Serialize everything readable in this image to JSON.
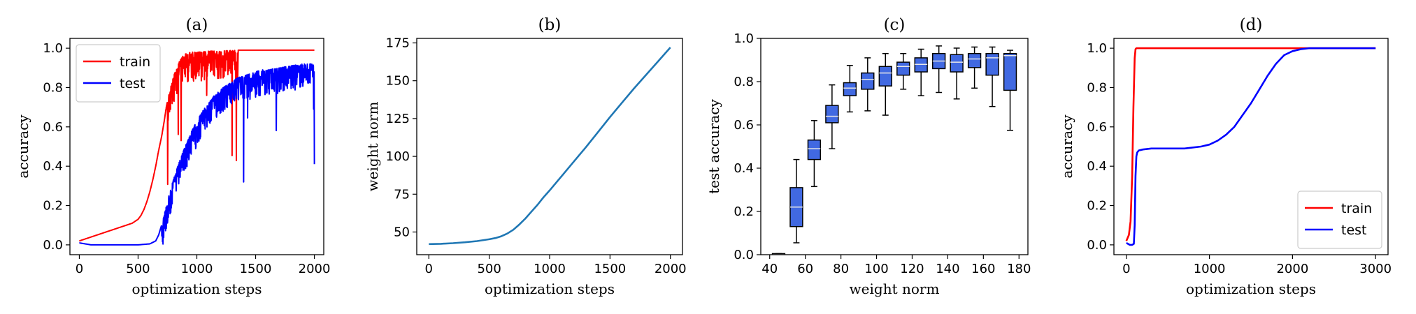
{
  "chart_data": [
    {
      "type": "line",
      "title": "(a)",
      "xlabel": "optimization steps",
      "ylabel": "accuracy",
      "xlim": [
        -80,
        2080
      ],
      "ylim": [
        -0.05,
        1.05
      ],
      "xticks": [
        0,
        500,
        1000,
        1500,
        2000
      ],
      "yticks": [
        0.0,
        0.2,
        0.4,
        0.6,
        0.8,
        1.0
      ],
      "legend": "top-left",
      "grid": false,
      "series": [
        {
          "name": "train",
          "color": "#ff0000",
          "x": [
            0,
            50,
            100,
            150,
            200,
            250,
            300,
            350,
            400,
            450,
            500,
            525,
            550,
            575,
            600,
            625,
            650,
            675,
            700,
            720,
            740,
            760,
            780,
            800,
            820,
            840,
            860,
            880,
            900,
            950,
            1000,
            1100,
            1200,
            1300,
            1400,
            1500,
            1600,
            1700,
            1800,
            1900,
            2000
          ],
          "y": [
            0.02,
            0.03,
            0.04,
            0.05,
            0.06,
            0.07,
            0.08,
            0.09,
            0.1,
            0.11,
            0.13,
            0.15,
            0.18,
            0.22,
            0.27,
            0.33,
            0.4,
            0.48,
            0.55,
            0.62,
            0.7,
            0.76,
            0.81,
            0.85,
            0.89,
            0.92,
            0.94,
            0.96,
            0.97,
            0.98,
            0.98,
            0.985,
            0.985,
            0.99,
            0.99,
            0.99,
            0.99,
            0.99,
            0.99,
            0.99,
            0.99
          ],
          "noise": {
            "start": 750,
            "end": 1350,
            "amplitude": 0.15
          }
        },
        {
          "name": "test",
          "color": "#0000ff",
          "x": [
            0,
            50,
            100,
            200,
            300,
            400,
            500,
            600,
            650,
            675,
            700,
            725,
            750,
            775,
            800,
            850,
            900,
            950,
            1000,
            1050,
            1100,
            1150,
            1200,
            1250,
            1300,
            1350,
            1400,
            1450,
            1500,
            1550,
            1600,
            1700,
            1800,
            1900,
            2000
          ],
          "y": [
            0.01,
            0.005,
            0.0,
            0.0,
            0.0,
            0.0,
            0.0,
            0.005,
            0.02,
            0.05,
            0.1,
            0.16,
            0.22,
            0.28,
            0.33,
            0.42,
            0.5,
            0.57,
            0.63,
            0.68,
            0.72,
            0.76,
            0.79,
            0.81,
            0.83,
            0.85,
            0.86,
            0.87,
            0.88,
            0.89,
            0.89,
            0.9,
            0.91,
            0.92,
            0.92
          ],
          "noise": {
            "start": 700,
            "end": 2000,
            "amplitude": 0.13
          }
        }
      ]
    },
    {
      "type": "line",
      "title": "(b)",
      "xlabel": "optimization steps",
      "ylabel": "weight norm",
      "xlim": [
        -100,
        2100
      ],
      "ylim": [
        35,
        178
      ],
      "xticks": [
        0,
        500,
        1000,
        1500,
        2000
      ],
      "yticks": [
        50,
        75,
        100,
        125,
        150,
        175
      ],
      "grid": false,
      "series": [
        {
          "name": "",
          "color": "#1f77b4",
          "x": [
            0,
            100,
            200,
            300,
            400,
            500,
            550,
            600,
            650,
            700,
            750,
            800,
            850,
            900,
            950,
            1000,
            1100,
            1200,
            1300,
            1400,
            1500,
            1600,
            1700,
            1800,
            1900,
            2000
          ],
          "y": [
            42,
            42.2,
            42.6,
            43.2,
            44,
            45.2,
            46,
            47.2,
            49,
            51.5,
            55,
            59,
            63.5,
            68,
            73,
            77.5,
            87,
            96.5,
            106,
            116,
            126,
            135.5,
            145,
            154,
            163,
            172
          ]
        }
      ]
    },
    {
      "type": "box",
      "title": "(c)",
      "xlabel": "weight norm",
      "ylabel": "test accuracy",
      "xlim": [
        35,
        185
      ],
      "ylim": [
        0.0,
        1.0
      ],
      "xticks": [
        40,
        60,
        80,
        100,
        120,
        140,
        160,
        180
      ],
      "yticks": [
        0.0,
        0.2,
        0.4,
        0.6,
        0.8,
        1.0
      ],
      "grid": false,
      "box_color": "#4169e1",
      "box_width": 7,
      "boxes": [
        {
          "x": 45,
          "whisker_low": 0.0,
          "q1": 0.0,
          "median": 0.0,
          "q3": 0.005,
          "whisker_high": 0.005
        },
        {
          "x": 55,
          "whisker_low": 0.055,
          "q1": 0.13,
          "median": 0.22,
          "q3": 0.31,
          "whisker_high": 0.44
        },
        {
          "x": 65,
          "whisker_low": 0.315,
          "q1": 0.44,
          "median": 0.49,
          "q3": 0.53,
          "whisker_high": 0.62
        },
        {
          "x": 75,
          "whisker_low": 0.49,
          "q1": 0.61,
          "median": 0.64,
          "q3": 0.69,
          "whisker_high": 0.785
        },
        {
          "x": 85,
          "whisker_low": 0.66,
          "q1": 0.735,
          "median": 0.77,
          "q3": 0.795,
          "whisker_high": 0.875
        },
        {
          "x": 95,
          "whisker_low": 0.665,
          "q1": 0.765,
          "median": 0.81,
          "q3": 0.84,
          "whisker_high": 0.91
        },
        {
          "x": 105,
          "whisker_low": 0.645,
          "q1": 0.78,
          "median": 0.84,
          "q3": 0.87,
          "whisker_high": 0.93
        },
        {
          "x": 115,
          "whisker_low": 0.765,
          "q1": 0.83,
          "median": 0.87,
          "q3": 0.89,
          "whisker_high": 0.93
        },
        {
          "x": 125,
          "whisker_low": 0.735,
          "q1": 0.845,
          "median": 0.88,
          "q3": 0.91,
          "whisker_high": 0.95
        },
        {
          "x": 135,
          "whisker_low": 0.75,
          "q1": 0.86,
          "median": 0.895,
          "q3": 0.93,
          "whisker_high": 0.965
        },
        {
          "x": 145,
          "whisker_low": 0.72,
          "q1": 0.845,
          "median": 0.89,
          "q3": 0.925,
          "whisker_high": 0.955
        },
        {
          "x": 155,
          "whisker_low": 0.77,
          "q1": 0.865,
          "median": 0.905,
          "q3": 0.93,
          "whisker_high": 0.96
        },
        {
          "x": 165,
          "whisker_low": 0.685,
          "q1": 0.83,
          "median": 0.91,
          "q3": 0.93,
          "whisker_high": 0.96
        },
        {
          "x": 175,
          "whisker_low": 0.575,
          "q1": 0.76,
          "median": 0.92,
          "q3": 0.93,
          "whisker_high": 0.945
        }
      ]
    },
    {
      "type": "line",
      "title": "(d)",
      "xlabel": "optimization steps",
      "ylabel": "accuracy",
      "xlim": [
        -150,
        3150
      ],
      "ylim": [
        -0.05,
        1.05
      ],
      "xticks": [
        0,
        1000,
        2000,
        3000
      ],
      "yticks": [
        0.0,
        0.2,
        0.4,
        0.6,
        0.8,
        1.0
      ],
      "legend": "bottom-right",
      "grid": false,
      "series": [
        {
          "name": "train",
          "color": "#ff0000",
          "x": [
            0,
            30,
            50,
            70,
            85,
            100,
            110,
            120,
            3000
          ],
          "y": [
            0.02,
            0.05,
            0.12,
            0.35,
            0.7,
            0.95,
            0.995,
            1.0,
            1.0
          ]
        },
        {
          "name": "test",
          "color": "#0000ff",
          "x": [
            0,
            40,
            70,
            90,
            100,
            110,
            120,
            130,
            150,
            200,
            300,
            500,
            700,
            900,
            1000,
            1100,
            1200,
            1300,
            1400,
            1500,
            1600,
            1700,
            1800,
            1900,
            2000,
            2100,
            2200,
            2300,
            2500,
            3000
          ],
          "y": [
            0.01,
            0.0,
            0.0,
            0.005,
            0.1,
            0.35,
            0.45,
            0.47,
            0.48,
            0.485,
            0.49,
            0.49,
            0.49,
            0.5,
            0.51,
            0.53,
            0.56,
            0.6,
            0.66,
            0.72,
            0.79,
            0.86,
            0.92,
            0.965,
            0.985,
            0.995,
            1.0,
            1.0,
            1.0,
            1.0
          ]
        }
      ]
    }
  ]
}
